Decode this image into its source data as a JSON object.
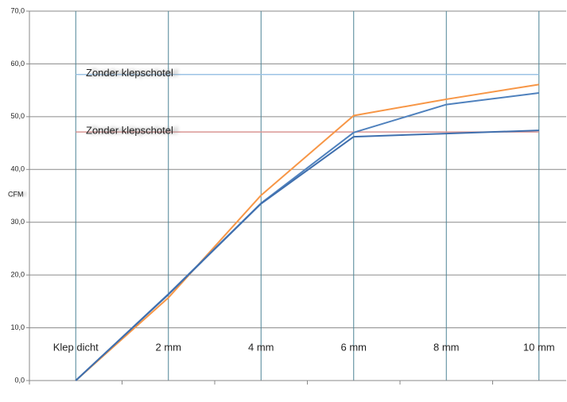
{
  "chart_data": {
    "type": "line",
    "y_label": "CFM",
    "categories": [
      "Klep dicht",
      "2 mm",
      "4 mm",
      "6 mm",
      "8 mm",
      "10 mm"
    ],
    "series": [
      {
        "color": "#f79646",
        "values": [
          0,
          15.7,
          35.1,
          50.2,
          53.3,
          56.1
        ]
      },
      {
        "color": "#4f81bd",
        "values": [
          0,
          16.4,
          33.6,
          47.0,
          52.3,
          54.5
        ]
      },
      {
        "color": "#3f6fae",
        "values": [
          0,
          16.3,
          33.5,
          46.2,
          46.8,
          47.4
        ]
      }
    ],
    "reference_lines": [
      {
        "label": "Zonder klepschotel",
        "value": 58.0,
        "color": "#9cc3e5"
      },
      {
        "label": "Zonder klepschotel",
        "value": 47.1,
        "color": "#d99694"
      }
    ],
    "ylim": [
      0,
      70
    ],
    "yticks": [
      {
        "value": 0,
        "label": "0,0"
      },
      {
        "value": 10,
        "label": "10,0"
      },
      {
        "value": 20,
        "label": "20,0"
      },
      {
        "value": 30,
        "label": "30,0"
      },
      {
        "value": 40,
        "label": "40,0"
      },
      {
        "value": 50,
        "label": "50,0"
      },
      {
        "value": 60,
        "label": "60,0"
      },
      {
        "value": 70,
        "label": "70,0"
      }
    ],
    "grid": true
  }
}
